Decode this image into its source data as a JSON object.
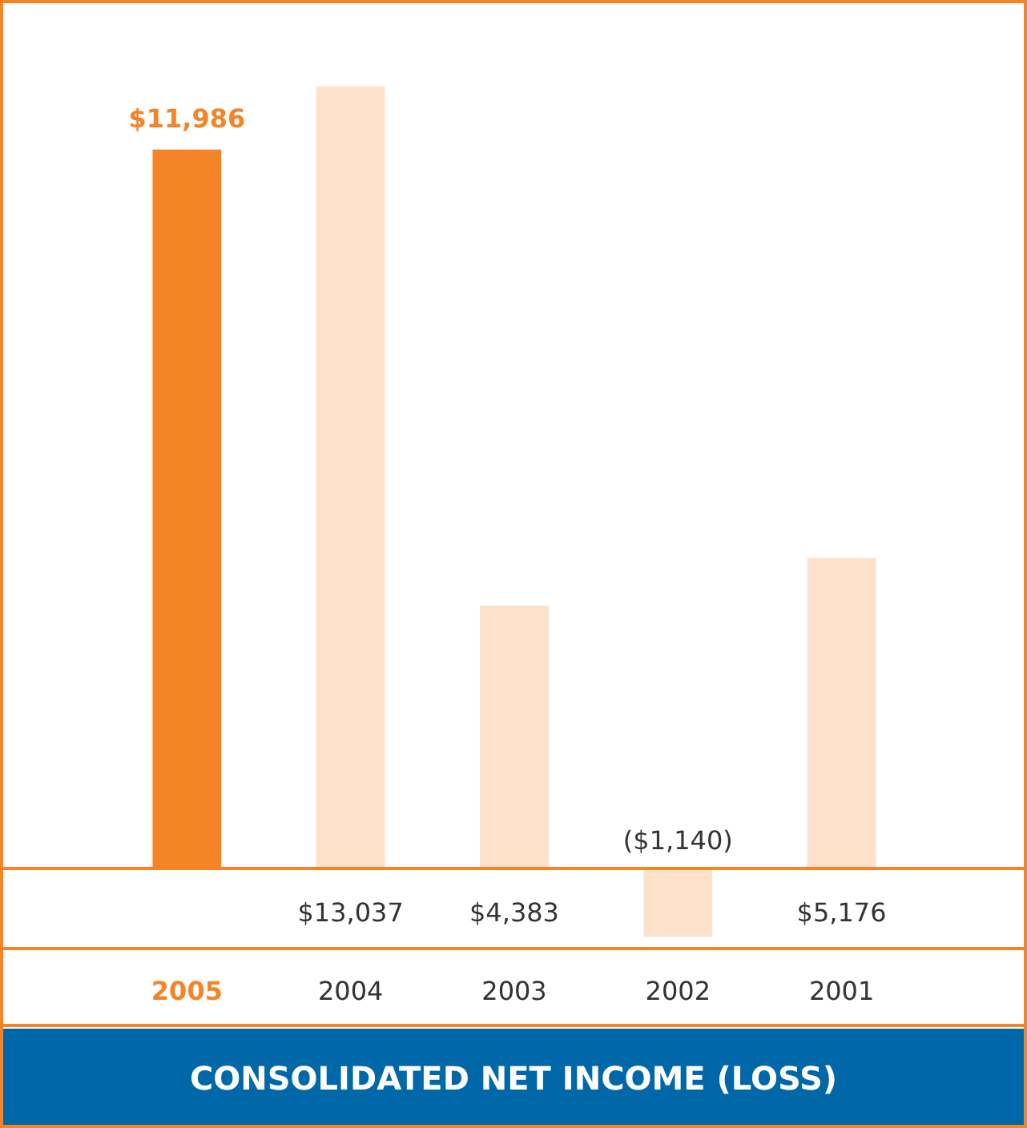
{
  "chart_data": {
    "type": "bar",
    "title": "CONSOLIDATED NET INCOME (LOSS)",
    "categories": [
      "2005",
      "2004",
      "2003",
      "2002",
      "2001"
    ],
    "values": [
      11986,
      13037,
      4383,
      -1140,
      5176
    ],
    "colors": [
      "#f58426",
      "#fde1ca",
      "#fde1ca",
      "#fde1ca",
      "#fde1ca"
    ],
    "value_labels": [
      "$11,986",
      "$13,037",
      "$4,383",
      "($1,140)",
      "$5,176"
    ],
    "ref_lines": [
      {
        "axis": "y",
        "value": 0,
        "color": "#f58426"
      }
    ]
  }
}
